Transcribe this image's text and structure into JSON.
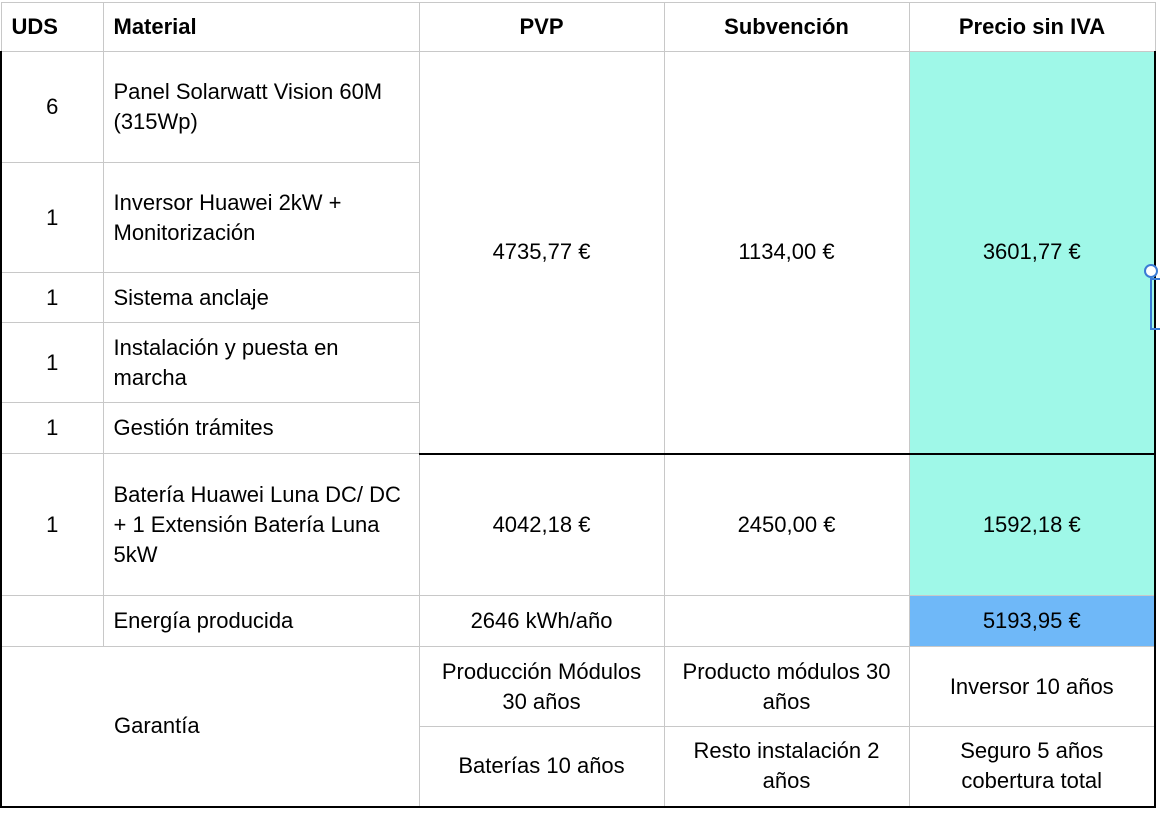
{
  "headers": {
    "uds": "UDS",
    "material": "Material",
    "pvp": "PVP",
    "subvencion": "Subvención",
    "precio": "Precio sin IVA"
  },
  "items": [
    {
      "uds": "6",
      "material": "Panel Solarwatt Vision 60M (315Wp)"
    },
    {
      "uds": "1",
      "material": "Inversor Huawei 2kW + Monitorización"
    },
    {
      "uds": "1",
      "material": "Sistema anclaje"
    },
    {
      "uds": "1",
      "material": "Instalación y puesta en marcha"
    },
    {
      "uds": "1",
      "material": "Gestión trámites"
    }
  ],
  "group1": {
    "pvp": "4735,77 €",
    "subvencion": "1134,00 €",
    "precio": "3601,77 €"
  },
  "battery": {
    "uds": "1",
    "material": "Batería Huawei Luna DC/ DC + 1 Extensión Batería Luna 5kW",
    "pvp": "4042,18 €",
    "subvencion": "2450,00 €",
    "precio": "1592,18 €"
  },
  "energia": {
    "label": "Energía producida",
    "value": "2646 kWh/año",
    "total": "5193,95 €"
  },
  "garantia": {
    "label": "Garantía",
    "r1": [
      "Producción Módulos 30 años",
      "Producto módulos 30 años",
      "Inversor 10 años"
    ],
    "r2": [
      "Baterías 10 años",
      "Resto instalación 2 años",
      "Seguro 5 años cobertura total"
    ]
  }
}
